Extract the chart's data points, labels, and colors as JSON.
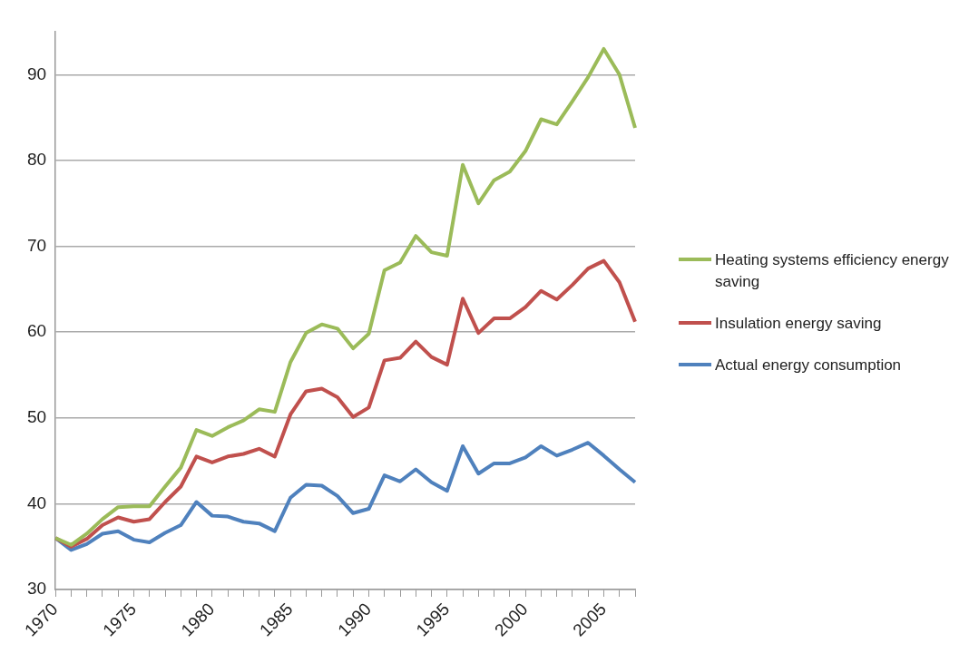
{
  "chart_data": {
    "type": "line",
    "categories": [
      "1970",
      null,
      null,
      null,
      null,
      "1975",
      null,
      null,
      null,
      null,
      "1980",
      null,
      null,
      null,
      null,
      "1985",
      null,
      null,
      null,
      null,
      "1990",
      null,
      null,
      null,
      null,
      "1995",
      null,
      null,
      null,
      null,
      "2000",
      null,
      null,
      null,
      null,
      "2005",
      null,
      null
    ],
    "series": [
      {
        "name": "Heating systems efficiency energy saving",
        "color": "#9bbb59",
        "values": [
          36,
          35.2,
          36.5,
          38.2,
          39.6,
          39.7,
          39.7,
          42,
          44.2,
          48.6,
          47.9,
          48.9,
          49.7,
          51,
          50.7,
          56.5,
          59.9,
          60.9,
          60.4,
          58.1,
          59.8,
          67.2,
          68.1,
          71.2,
          69.3,
          68.9,
          79.5,
          75,
          77.7,
          78.7,
          81.1,
          84.8,
          84.2,
          86.9,
          89.7,
          93,
          90,
          83.8
        ]
      },
      {
        "name": "Insulation energy saving",
        "color": "#c0504d",
        "values": [
          36,
          35,
          35.9,
          37.5,
          38.4,
          37.9,
          38.2,
          40.2,
          42,
          45.5,
          44.8,
          45.5,
          45.8,
          46.4,
          45.5,
          50.4,
          53.1,
          53.4,
          52.4,
          50.1,
          51.2,
          56.7,
          57,
          58.9,
          57.1,
          56.2,
          63.9,
          59.9,
          61.6,
          61.6,
          62.9,
          64.8,
          63.8,
          65.5,
          67.4,
          68.3,
          65.8,
          61.2
        ]
      },
      {
        "name": "Actual energy consumption",
        "color": "#4f81bd",
        "values": [
          36,
          34.6,
          35.3,
          36.5,
          36.8,
          35.8,
          35.5,
          36.6,
          37.5,
          40.2,
          38.6,
          38.5,
          37.9,
          37.7,
          36.8,
          40.7,
          42.2,
          42.1,
          40.9,
          38.9,
          39.4,
          43.3,
          42.6,
          44,
          42.5,
          41.5,
          46.7,
          43.5,
          44.7,
          44.7,
          45.4,
          46.7,
          45.6,
          46.3,
          47.1,
          45.6,
          44,
          42.5
        ]
      }
    ],
    "ylim": [
      30,
      95
    ],
    "yticks": [
      30,
      40,
      50,
      60,
      70,
      80,
      90
    ],
    "grid": "y",
    "legend": "right",
    "marker": "none",
    "line_style": "solid"
  }
}
